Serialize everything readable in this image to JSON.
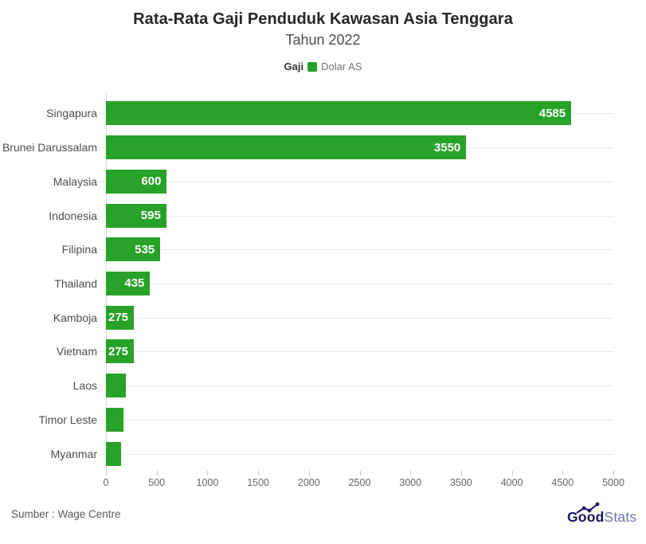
{
  "header": {
    "title": "Rata-Rata Gaji Penduduk Kawasan Asia Tenggara",
    "subtitle": "Tahun 2022",
    "legend": {
      "label": "Gaji",
      "series": "Dolar AS"
    }
  },
  "chart_data": {
    "type": "bar",
    "orientation": "horizontal",
    "title": "Rata-Rata Gaji Penduduk Kawasan Asia Tenggara",
    "subtitle": "Tahun 2022",
    "series_name": "Dolar AS",
    "xlabel": "",
    "ylabel": "",
    "xlim": [
      0,
      5000
    ],
    "x_ticks": [
      0,
      500,
      1000,
      1500,
      2000,
      2500,
      3000,
      3500,
      4000,
      4500,
      5000
    ],
    "grid": "horizontal-row-lines",
    "legend_position": "top-center",
    "bar_color": "#28a228",
    "categories": [
      "Singapura",
      "Brunei Darussalam",
      "Malaysia",
      "Indonesia",
      "Filipina",
      "Thailand",
      "Kamboja",
      "Vietnam",
      "Laos",
      "Timor Leste",
      "Myanmar"
    ],
    "values": [
      4585,
      3550,
      600,
      595,
      535,
      435,
      275,
      275,
      200,
      175,
      150
    ],
    "rows": [
      {
        "label": "Singapura",
        "value": 4585,
        "value_label": "4585"
      },
      {
        "label": "Brunei Darussalam",
        "value": 3550,
        "value_label": "3550"
      },
      {
        "label": "Malaysia",
        "value": 600,
        "value_label": "600"
      },
      {
        "label": "Indonesia",
        "value": 595,
        "value_label": "595"
      },
      {
        "label": "Filipina",
        "value": 535,
        "value_label": "535"
      },
      {
        "label": "Thailand",
        "value": 435,
        "value_label": "435"
      },
      {
        "label": "Kamboja",
        "value": 275,
        "value_label": "275"
      },
      {
        "label": "Vietnam",
        "value": 275,
        "value_label": "275"
      },
      {
        "label": "Laos",
        "value": 200,
        "value_label": ""
      },
      {
        "label": "Timor Leste",
        "value": 175,
        "value_label": ""
      },
      {
        "label": "Myanmar",
        "value": 150,
        "value_label": ""
      }
    ]
  },
  "footer": {
    "source": "Sumber : Wage Centre",
    "logo": {
      "part1": "Good",
      "part2": "Stats"
    }
  }
}
